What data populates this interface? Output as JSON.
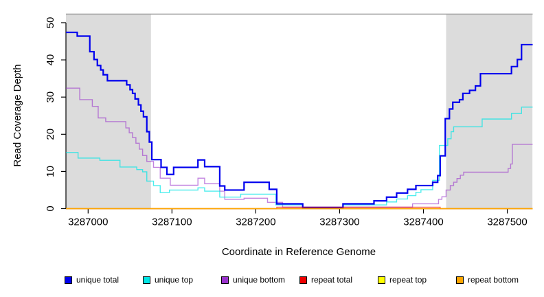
{
  "figure": {
    "xlabel": "Coordinate in Reference Genome",
    "ylabel": "Read Coverage Depth"
  },
  "legend": {
    "items": [
      {
        "label": "unique total",
        "color": "#0000EE"
      },
      {
        "label": "unique top",
        "color": "#00E5E5"
      },
      {
        "label": "unique bottom",
        "color": "#9932CC"
      },
      {
        "label": "repeat total",
        "color": "#EE0000"
      },
      {
        "label": "repeat top",
        "color": "#FFFF00"
      },
      {
        "label": "repeat bottom",
        "color": "#FFA500"
      }
    ]
  },
  "chart_data": {
    "type": "line",
    "subtype": "step-coverage",
    "title": "",
    "xlabel": "Coordinate in Reference Genome",
    "ylabel": "Read Coverage Depth",
    "xlim": [
      3286973,
      3287530
    ],
    "ylim": [
      0,
      52.3
    ],
    "x_ticks": [
      3287000,
      3287100,
      3287200,
      3287300,
      3287400,
      3287500
    ],
    "x_tick_labels": [
      "3287000",
      "3287100",
      "3287200",
      "3287300",
      "3287400",
      "3287500"
    ],
    "y_ticks": [
      0,
      10,
      20,
      30,
      40,
      50
    ],
    "y_tick_labels": [
      "0",
      "10",
      "20",
      "30",
      "40",
      "50"
    ],
    "grid": false,
    "legend_position": "bottom",
    "shaded_regions": [
      {
        "x0": 3286973,
        "x1": 3287075,
        "color": "#dcdcdc"
      },
      {
        "x0": 3287427,
        "x1": 3287530,
        "color": "#dcdcdc"
      }
    ],
    "top_boundary_line": {
      "y": 52.3,
      "color": "#a0a0a0"
    },
    "series": [
      {
        "name": "unique bottom",
        "color": "#9932CC",
        "width": 1.4,
        "opacity": 0.6,
        "steps": [
          [
            3286973,
            32.4
          ],
          [
            3286990,
            29.3
          ],
          [
            3287005,
            27.5
          ],
          [
            3287012,
            24.4
          ],
          [
            3287021,
            23.4
          ],
          [
            3287045,
            21.7
          ],
          [
            3287049,
            20.4
          ],
          [
            3287053,
            19.1
          ],
          [
            3287057,
            17.6
          ],
          [
            3287061,
            16.0
          ],
          [
            3287065,
            14.3
          ],
          [
            3287070,
            12.7
          ],
          [
            3287078,
            11.1
          ],
          [
            3287086,
            8.2
          ],
          [
            3287098,
            6.3
          ],
          [
            3287131,
            8.2
          ],
          [
            3287139,
            6.7
          ],
          [
            3287157,
            4.7
          ],
          [
            3287163,
            2.5
          ],
          [
            3287186,
            2.8
          ],
          [
            3287214,
            1.7
          ],
          [
            3287232,
            0.4
          ],
          [
            3287387,
            1.3
          ],
          [
            3287418,
            2.5
          ],
          [
            3287422,
            3.2
          ],
          [
            3287427,
            5.0
          ],
          [
            3287432,
            6.2
          ],
          [
            3287436,
            7.1
          ],
          [
            3287440,
            8.1
          ],
          [
            3287444,
            9.0
          ],
          [
            3287448,
            9.8
          ],
          [
            3287501,
            10.8
          ],
          [
            3287504,
            12.0
          ],
          [
            3287506,
            17.3
          ]
        ]
      },
      {
        "name": "unique top",
        "color": "#00E5E5",
        "width": 1.4,
        "opacity": 0.7,
        "steps": [
          [
            3286973,
            15.1
          ],
          [
            3286988,
            13.6
          ],
          [
            3287014,
            13.0
          ],
          [
            3287038,
            11.2
          ],
          [
            3287058,
            10.5
          ],
          [
            3287065,
            9.9
          ],
          [
            3287070,
            7.4
          ],
          [
            3287078,
            6.2
          ],
          [
            3287086,
            4.3
          ],
          [
            3287097,
            5.0
          ],
          [
            3287131,
            5.6
          ],
          [
            3287139,
            4.7
          ],
          [
            3287157,
            3.1
          ],
          [
            3287182,
            3.9
          ],
          [
            3287224,
            1.0
          ],
          [
            3287256,
            0.2
          ],
          [
            3287304,
            1.0
          ],
          [
            3287356,
            1.8
          ],
          [
            3287368,
            2.6
          ],
          [
            3287381,
            3.5
          ],
          [
            3287391,
            4.4
          ],
          [
            3287397,
            5.1
          ],
          [
            3287411,
            7.6
          ],
          [
            3287419,
            17.0
          ],
          [
            3287429,
            18.8
          ],
          [
            3287433,
            20.7
          ],
          [
            3287436,
            22.0
          ],
          [
            3287470,
            24.1
          ],
          [
            3287505,
            25.6
          ],
          [
            3287517,
            27.3
          ]
        ]
      },
      {
        "name": "unique total",
        "color": "#0000EE",
        "width": 2.2,
        "opacity": 1,
        "steps": [
          [
            3286973,
            47.4
          ],
          [
            3286987,
            46.4
          ],
          [
            3287002,
            42.2
          ],
          [
            3287007,
            40.1
          ],
          [
            3287011,
            38.5
          ],
          [
            3287015,
            37.3
          ],
          [
            3287018,
            36.0
          ],
          [
            3287023,
            34.4
          ],
          [
            3287046,
            33.3
          ],
          [
            3287050,
            32.0
          ],
          [
            3287053,
            31.0
          ],
          [
            3287056,
            29.5
          ],
          [
            3287060,
            27.9
          ],
          [
            3287063,
            26.2
          ],
          [
            3287066,
            24.7
          ],
          [
            3287070,
            20.7
          ],
          [
            3287073,
            17.9
          ],
          [
            3287076,
            13.2
          ],
          [
            3287087,
            11.1
          ],
          [
            3287094,
            9.2
          ],
          [
            3287102,
            11.1
          ],
          [
            3287131,
            13.1
          ],
          [
            3287139,
            11.3
          ],
          [
            3287157,
            6.1
          ],
          [
            3287163,
            5.0
          ],
          [
            3287186,
            7.1
          ],
          [
            3287216,
            5.2
          ],
          [
            3287225,
            1.3
          ],
          [
            3287256,
            0.3
          ],
          [
            3287304,
            1.3
          ],
          [
            3287341,
            2.1
          ],
          [
            3287356,
            3.1
          ],
          [
            3287368,
            4.2
          ],
          [
            3287381,
            5.2
          ],
          [
            3287391,
            6.2
          ],
          [
            3287411,
            7.1
          ],
          [
            3287417,
            8.9
          ],
          [
            3287420,
            14.2
          ],
          [
            3287426,
            24.2
          ],
          [
            3287431,
            26.8
          ],
          [
            3287435,
            28.6
          ],
          [
            3287443,
            29.3
          ],
          [
            3287447,
            31.0
          ],
          [
            3287455,
            31.8
          ],
          [
            3287462,
            33.0
          ],
          [
            3287468,
            36.3
          ],
          [
            3287505,
            38.2
          ],
          [
            3287512,
            40.1
          ],
          [
            3287517,
            44.1
          ]
        ]
      },
      {
        "name": "repeat total",
        "color": "#EE0000",
        "width": 1.2,
        "opacity": 0.65,
        "steps": [
          [
            3286973,
            0
          ],
          [
            3287225,
            0.4
          ],
          [
            3287420,
            0
          ]
        ]
      },
      {
        "name": "repeat top",
        "color": "#FFFF00",
        "width": 1.1,
        "opacity": 1,
        "steps": [
          [
            3286973,
            0
          ]
        ]
      },
      {
        "name": "repeat bottom",
        "color": "#FFA500",
        "width": 1.8,
        "opacity": 1,
        "steps": [
          [
            3286973,
            0
          ]
        ]
      }
    ]
  }
}
